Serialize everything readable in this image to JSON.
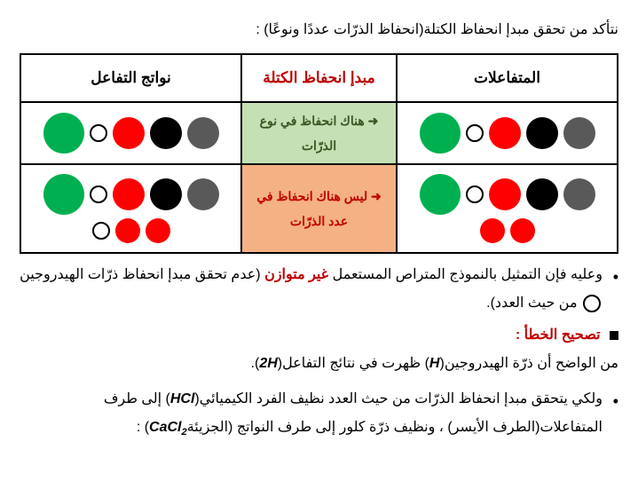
{
  "intro": "نتأكد من تحقق مبدإ انحفاظ الكتلة(انحفاظ الذرّات عددًا ونوعًا) :",
  "table": {
    "headers": {
      "reactants": "المتفاعلات",
      "principle": "مبدإ انحفاظ الكتلة",
      "products": "نواتج التفاعل"
    },
    "row1": {
      "note_prefix": "➜",
      "note": "هناك انحفاظ في نوع الذرّات",
      "reactants": [
        {
          "size": "md",
          "type": "fill",
          "color": "#595959"
        },
        {
          "size": "md",
          "type": "fill",
          "color": "#000000"
        },
        {
          "size": "md",
          "type": "fill",
          "color": "#ff0000"
        },
        {
          "size": "xs",
          "type": "outline"
        },
        {
          "size": "lg",
          "type": "fill",
          "color": "#00b050"
        }
      ],
      "products": [
        {
          "size": "md",
          "type": "fill",
          "color": "#595959"
        },
        {
          "size": "md",
          "type": "fill",
          "color": "#000000"
        },
        {
          "size": "md",
          "type": "fill",
          "color": "#ff0000"
        },
        {
          "size": "xs",
          "type": "outline"
        },
        {
          "size": "lg",
          "type": "fill",
          "color": "#00b050"
        }
      ]
    },
    "row2": {
      "note_prefix": "➜",
      "note": "ليس هناك انحفاظ في عدد الذرّات",
      "reactants_top": [
        {
          "size": "md",
          "type": "fill",
          "color": "#595959"
        },
        {
          "size": "md",
          "type": "fill",
          "color": "#000000"
        },
        {
          "size": "md",
          "type": "fill",
          "color": "#ff0000"
        },
        {
          "size": "xs",
          "type": "outline"
        },
        {
          "size": "lg",
          "type": "fill",
          "color": "#00b050"
        }
      ],
      "reactants_bot": [
        {
          "size": "sm",
          "type": "fill",
          "color": "#ff0000"
        },
        {
          "size": "sm",
          "type": "fill",
          "color": "#ff0000"
        }
      ],
      "products_top": [
        {
          "size": "md",
          "type": "fill",
          "color": "#595959"
        },
        {
          "size": "md",
          "type": "fill",
          "color": "#000000"
        },
        {
          "size": "md",
          "type": "fill",
          "color": "#ff0000"
        },
        {
          "size": "xs",
          "type": "outline"
        },
        {
          "size": "lg",
          "type": "fill",
          "color": "#00b050"
        }
      ],
      "products_bot": [
        {
          "size": "sm",
          "type": "fill",
          "color": "#ff0000"
        },
        {
          "size": "sm",
          "type": "fill",
          "color": "#ff0000"
        },
        {
          "size": "xs",
          "type": "outline"
        }
      ]
    }
  },
  "bullets": {
    "b1_a": "وعليه فإن التمثيل بالنموذج المتراص المستعمل ",
    "b1_red": "غير متوازن",
    "b1_b": "(عدم تحقق مبدإ انحفاظ ذرّات الهيدروجين",
    "b1_c": " من حيث العدد)."
  },
  "correction_title": "تصحيح الخطأ :",
  "line2_a": "من الواضح أن ذرّة الهيدروجين(",
  "line2_h": "H",
  "line2_b": ") ظهرت في نتائج التفاعل(",
  "line2_2h": "2H",
  "line2_c": ").",
  "b2_a": "ولكي يتحقق مبدإ انحفاظ الذرّات من حيث العدد نظيف الفرد الكيميائي(",
  "b2_hcl": "HCl",
  "b2_b": ") إلى طرف المتفاعلات(الطرف الأيسر) ، ونظيف ذرّة كلور إلى طرف النواتج (الجزيئة",
  "b2_cacl2_a": "CaCl",
  "b2_cacl2_sub": "2",
  "b2_c": ") :"
}
